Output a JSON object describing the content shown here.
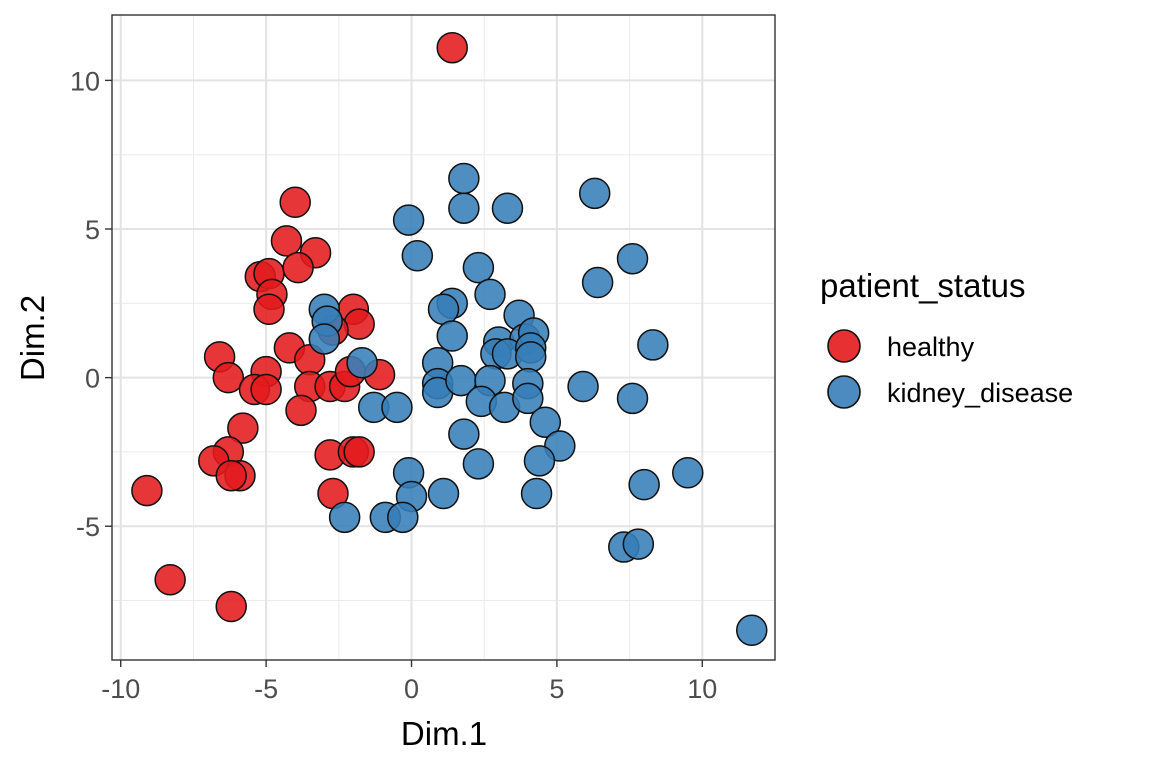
{
  "chart_data": {
    "type": "scatter",
    "title": "",
    "xlabel": "Dim.1",
    "ylabel": "Dim.2",
    "xlim": [
      -10.3,
      12.5
    ],
    "ylim": [
      -9.5,
      12.2
    ],
    "x_ticks": [
      -10,
      -5,
      0,
      5,
      10
    ],
    "x_tick_labels": [
      "-10",
      "-5",
      "0",
      "5",
      "10"
    ],
    "y_ticks": [
      -5,
      0,
      5,
      10
    ],
    "y_tick_labels": [
      "-5",
      "0",
      "5",
      "10"
    ],
    "grid": true,
    "legend_title": "patient_status",
    "legend_position": "right",
    "series": [
      {
        "name": "healthy",
        "color": "#E41A1C",
        "points": [
          [
            1.4,
            11.1
          ],
          [
            -4.0,
            5.9
          ],
          [
            -4.3,
            4.6
          ],
          [
            -3.3,
            4.2
          ],
          [
            -5.2,
            3.4
          ],
          [
            -4.9,
            3.5
          ],
          [
            -3.9,
            3.7
          ],
          [
            -4.8,
            2.8
          ],
          [
            -4.9,
            2.3
          ],
          [
            -2.0,
            2.3
          ],
          [
            -1.8,
            1.8
          ],
          [
            -2.7,
            1.6
          ],
          [
            -4.2,
            1.0
          ],
          [
            -3.5,
            0.6
          ],
          [
            -6.6,
            0.7
          ],
          [
            -5.0,
            0.2
          ],
          [
            -6.3,
            0.0
          ],
          [
            -5.4,
            -0.4
          ],
          [
            -5.0,
            -0.4
          ],
          [
            -3.5,
            -0.3
          ],
          [
            -2.8,
            -0.3
          ],
          [
            -2.3,
            -0.3
          ],
          [
            -2.1,
            0.2
          ],
          [
            -1.1,
            0.1
          ],
          [
            -3.8,
            -1.1
          ],
          [
            -5.8,
            -1.7
          ],
          [
            -6.3,
            -2.5
          ],
          [
            -6.8,
            -2.8
          ],
          [
            -5.9,
            -3.3
          ],
          [
            -6.2,
            -3.3
          ],
          [
            -2.8,
            -2.6
          ],
          [
            -2.0,
            -2.5
          ],
          [
            -1.8,
            -2.5
          ],
          [
            -2.7,
            -3.9
          ],
          [
            -9.1,
            -3.8
          ],
          [
            -8.3,
            -6.8
          ],
          [
            -6.2,
            -7.7
          ]
        ]
      },
      {
        "name": "kidney_disease",
        "color": "#377EB8",
        "points": [
          [
            1.8,
            6.7
          ],
          [
            1.8,
            5.7
          ],
          [
            3.3,
            5.7
          ],
          [
            6.3,
            6.2
          ],
          [
            -0.1,
            5.3
          ],
          [
            0.2,
            4.1
          ],
          [
            7.6,
            4.0
          ],
          [
            2.3,
            3.7
          ],
          [
            6.4,
            3.2
          ],
          [
            2.7,
            2.8
          ],
          [
            -3.0,
            2.3
          ],
          [
            -2.9,
            1.9
          ],
          [
            -3.0,
            1.3
          ],
          [
            1.4,
            2.5
          ],
          [
            1.1,
            2.3
          ],
          [
            3.7,
            2.1
          ],
          [
            1.4,
            1.4
          ],
          [
            3.0,
            1.2
          ],
          [
            3.9,
            1.3
          ],
          [
            4.2,
            1.5
          ],
          [
            8.3,
            1.1
          ],
          [
            2.9,
            0.8
          ],
          [
            3.3,
            0.8
          ],
          [
            4.1,
            1.0
          ],
          [
            4.1,
            0.7
          ],
          [
            -1.7,
            0.5
          ],
          [
            0.9,
            0.5
          ],
          [
            0.9,
            -0.2
          ],
          [
            0.9,
            -0.5
          ],
          [
            1.7,
            -0.1
          ],
          [
            2.7,
            -0.1
          ],
          [
            4.0,
            -0.2
          ],
          [
            5.9,
            -0.3
          ],
          [
            2.4,
            -0.8
          ],
          [
            3.2,
            -1.0
          ],
          [
            4.0,
            -0.7
          ],
          [
            7.6,
            -0.7
          ],
          [
            -1.3,
            -1.0
          ],
          [
            -0.5,
            -1.0
          ],
          [
            1.8,
            -1.9
          ],
          [
            4.6,
            -1.5
          ],
          [
            5.1,
            -2.3
          ],
          [
            2.3,
            -2.9
          ],
          [
            4.4,
            -2.8
          ],
          [
            -0.1,
            -3.2
          ],
          [
            8.0,
            -3.6
          ],
          [
            9.5,
            -3.2
          ],
          [
            0.0,
            -4.0
          ],
          [
            1.1,
            -3.9
          ],
          [
            4.3,
            -3.9
          ],
          [
            -2.3,
            -4.7
          ],
          [
            -0.9,
            -4.7
          ],
          [
            -0.3,
            -4.7
          ],
          [
            7.3,
            -5.7
          ],
          [
            7.8,
            -5.6
          ],
          [
            11.7,
            -8.5
          ]
        ]
      }
    ]
  }
}
